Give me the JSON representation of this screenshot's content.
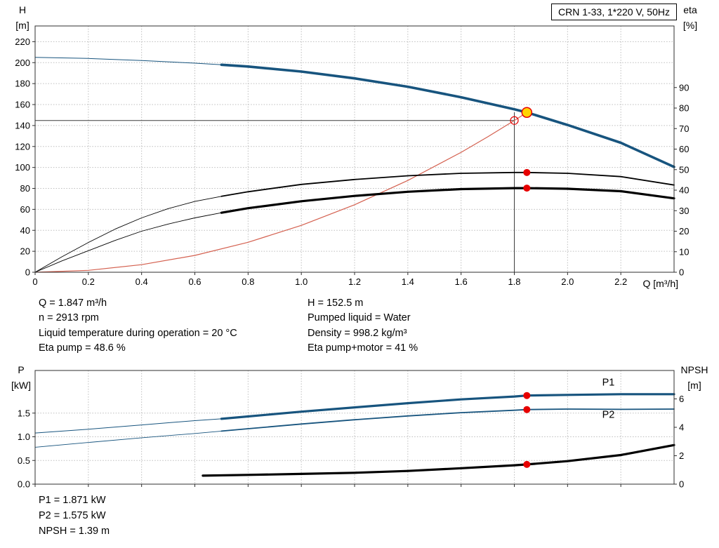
{
  "info_top": {
    "left": [
      "Q = 1.847 m³/h",
      "n = 2913 rpm",
      "Liquid temperature during operation = 20 °C",
      "Eta pump = 48.6 %"
    ],
    "right": [
      "H = 152.5 m",
      "Pumped liquid = Water",
      "Density = 998.2 kg/m³",
      "Eta pump+motor = 41 %"
    ]
  },
  "info_bottom": [
    "P1 = 1.871 kW",
    "P2 = 1.575 kW",
    "NPSH = 1.39 m"
  ],
  "colors": {
    "curve_blue": "#17547e",
    "curve_black": "#000000",
    "marker_red": "#e60000",
    "system_curve_red": "#d4604f",
    "duty_yellow": "#ffd400",
    "grid_gray": "#bdbdbd"
  },
  "chart_data": [
    {
      "name": "head-capacity-chart",
      "type": "line",
      "title": "CRN 1-33, 1*220 V, 50Hz",
      "grid": true,
      "legend_position": "none",
      "x_axis": {
        "name": "Q",
        "unit": "[m³/h]",
        "label": "Q [m³/h]",
        "min": 0,
        "max": 2.4,
        "ticks": [
          0,
          0.2,
          0.4,
          0.6,
          0.8,
          1.0,
          1.2,
          1.4,
          1.6,
          1.8,
          2.0,
          2.2
        ],
        "labels": [
          "0",
          "0.2",
          "0.4",
          "0.6",
          "0.8",
          "1.0",
          "1.2",
          "1.4",
          "1.6",
          "1.8",
          "2.0",
          "2.2"
        ]
      },
      "y_left": {
        "name": "H",
        "unit": "[m]",
        "min": 0,
        "max": 235,
        "ticks": [
          0,
          20,
          40,
          60,
          80,
          100,
          120,
          140,
          160,
          180,
          200,
          220
        ],
        "labels": [
          "0",
          "20",
          "40",
          "60",
          "80",
          "100",
          "120",
          "140",
          "160",
          "180",
          "200",
          "220"
        ]
      },
      "y_right": {
        "name": "eta",
        "unit": "[%]",
        "min": 0,
        "max": 120,
        "ticks": [
          0,
          10,
          20,
          30,
          40,
          50,
          60,
          70,
          80,
          90
        ],
        "labels": [
          "0",
          "10",
          "20",
          "30",
          "40",
          "50",
          "60",
          "70",
          "80",
          "90"
        ]
      },
      "crosshair": {
        "x": 1.8,
        "y": 144.8,
        "y_top": 152.5,
        "color": "#3c3c3c"
      },
      "series": [
        {
          "name": "system-curve",
          "axis": "left",
          "color": "#d4604f",
          "width": 1.2,
          "thin_width": 1.2,
          "thick_from": null,
          "points": [
            [
              0,
              0
            ],
            [
              0.2,
              1.8
            ],
            [
              0.4,
              7.2
            ],
            [
              0.6,
              16.1
            ],
            [
              0.8,
              28.6
            ],
            [
              1.0,
              44.7
            ],
            [
              1.2,
              64.4
            ],
            [
              1.4,
              87.6
            ],
            [
              1.6,
              114.4
            ],
            [
              1.7,
              129.2
            ],
            [
              1.8,
              144.8
            ],
            [
              1.847,
              152.5
            ]
          ]
        },
        {
          "name": "head-curve",
          "axis": "left",
          "color": "#17547e",
          "width": 3.6,
          "thin_width": 1,
          "thick_from": 0.7,
          "points": [
            [
              0,
              205
            ],
            [
              0.2,
              204
            ],
            [
              0.4,
              202
            ],
            [
              0.6,
              199.5
            ],
            [
              0.7,
              198
            ],
            [
              0.8,
              196.3
            ],
            [
              1.0,
              191.5
            ],
            [
              1.2,
              185
            ],
            [
              1.4,
              177
            ],
            [
              1.6,
              167
            ],
            [
              1.8,
              155.5
            ],
            [
              1.847,
              152.5
            ],
            [
              2.0,
              140.5
            ],
            [
              2.2,
              123.5
            ],
            [
              2.4,
              100.5
            ]
          ]
        },
        {
          "name": "eta-pump-curve",
          "axis": "right",
          "color": "#000000",
          "width": 1.8,
          "thin_width": 0.9,
          "thick_from": 0.7,
          "points": [
            [
              0,
              0
            ],
            [
              0.1,
              7.5
            ],
            [
              0.2,
              14.5
            ],
            [
              0.3,
              21
            ],
            [
              0.4,
              26.5
            ],
            [
              0.5,
              31
            ],
            [
              0.6,
              34.5
            ],
            [
              0.7,
              37
            ],
            [
              0.8,
              39.2
            ],
            [
              1.0,
              42.8
            ],
            [
              1.2,
              45.2
            ],
            [
              1.4,
              47
            ],
            [
              1.6,
              48.2
            ],
            [
              1.8,
              48.6
            ],
            [
              1.847,
              48.6
            ],
            [
              2.0,
              48.2
            ],
            [
              2.2,
              46.6
            ],
            [
              2.4,
              42.5
            ]
          ]
        },
        {
          "name": "eta-pump-motor-curve",
          "axis": "right",
          "color": "#000000",
          "width": 3.2,
          "thin_width": 0.9,
          "thick_from": 0.7,
          "points": [
            [
              0,
              0
            ],
            [
              0.1,
              5.5
            ],
            [
              0.2,
              10.5
            ],
            [
              0.3,
              15.5
            ],
            [
              0.4,
              20
            ],
            [
              0.5,
              23.5
            ],
            [
              0.6,
              26.5
            ],
            [
              0.7,
              29
            ],
            [
              0.8,
              31.2
            ],
            [
              1.0,
              34.6
            ],
            [
              1.2,
              37.2
            ],
            [
              1.4,
              39.2
            ],
            [
              1.6,
              40.5
            ],
            [
              1.8,
              41
            ],
            [
              1.847,
              41
            ],
            [
              2.0,
              40.7
            ],
            [
              2.2,
              39.5
            ],
            [
              2.4,
              36
            ]
          ]
        }
      ],
      "markers": [
        {
          "name": "requested-duty-point",
          "axis": "left",
          "x": 1.8,
          "y": 144.8,
          "r": 5.5,
          "fill": "none",
          "stroke": "#e60000",
          "sw": 1.2,
          "interactable": false
        },
        {
          "name": "duty-point",
          "axis": "left",
          "x": 1.847,
          "y": 152.5,
          "r": 7,
          "fill": "#ffd400",
          "stroke": "#e60000",
          "sw": 1.5,
          "interactable": true
        },
        {
          "name": "eta-pump-duty-dot",
          "axis": "right",
          "x": 1.847,
          "y": 48.6,
          "r": 5,
          "fill": "#e60000",
          "stroke": "none",
          "sw": 0,
          "interactable": false
        },
        {
          "name": "eta-pump-motor-duty-dot",
          "axis": "right",
          "x": 1.847,
          "y": 41,
          "r": 5,
          "fill": "#e60000",
          "stroke": "none",
          "sw": 0,
          "interactable": false
        }
      ]
    },
    {
      "name": "power-npsh-chart",
      "type": "line",
      "title": "",
      "grid": true,
      "legend_position": "inline-right",
      "x_axis": {
        "name": "Q",
        "unit": "[m³/h]",
        "label": "",
        "min": 0,
        "max": 2.4,
        "ticks": [
          0,
          0.2,
          0.4,
          0.6,
          0.8,
          1.0,
          1.2,
          1.4,
          1.6,
          1.8,
          2.0,
          2.2
        ],
        "labels": []
      },
      "y_left": {
        "name": "P",
        "unit": "[kW]",
        "min": 0,
        "max": 2.4,
        "ticks": [
          0,
          0.5,
          1.0,
          1.5
        ],
        "labels": [
          "0.0",
          "0.5",
          "1.0",
          "1.5"
        ]
      },
      "y_right": {
        "name": "NPSH",
        "unit": "[m]",
        "min": 0,
        "max": 8,
        "ticks": [
          0,
          2,
          4,
          6
        ],
        "labels": [
          "0",
          "2",
          "4",
          "6"
        ]
      },
      "crosshair": null,
      "series": [
        {
          "name": "p1-curve",
          "axis": "left",
          "color": "#17547e",
          "width": 3.2,
          "thin_width": 1,
          "thick_from": 0.7,
          "label": "P1",
          "label_at": [
            2.13,
            2.08
          ],
          "points": [
            [
              0,
              1.08
            ],
            [
              0.2,
              1.16
            ],
            [
              0.4,
              1.25
            ],
            [
              0.6,
              1.34
            ],
            [
              0.7,
              1.38
            ],
            [
              0.8,
              1.43
            ],
            [
              1.0,
              1.53
            ],
            [
              1.2,
              1.62
            ],
            [
              1.4,
              1.71
            ],
            [
              1.6,
              1.79
            ],
            [
              1.8,
              1.85
            ],
            [
              1.847,
              1.871
            ],
            [
              2.0,
              1.885
            ],
            [
              2.2,
              1.9
            ],
            [
              2.4,
              1.9
            ]
          ]
        },
        {
          "name": "p2-curve",
          "axis": "left",
          "color": "#17547e",
          "width": 1.8,
          "thin_width": 0.9,
          "thick_from": 0.7,
          "label": "P2",
          "label_at": [
            2.13,
            1.4
          ],
          "points": [
            [
              0,
              0.78
            ],
            [
              0.2,
              0.88
            ],
            [
              0.4,
              0.98
            ],
            [
              0.6,
              1.07
            ],
            [
              0.7,
              1.12
            ],
            [
              0.8,
              1.17
            ],
            [
              1.0,
              1.27
            ],
            [
              1.2,
              1.36
            ],
            [
              1.4,
              1.44
            ],
            [
              1.6,
              1.51
            ],
            [
              1.8,
              1.56
            ],
            [
              1.847,
              1.575
            ],
            [
              2.0,
              1.585
            ],
            [
              2.2,
              1.58
            ],
            [
              2.4,
              1.585
            ]
          ]
        },
        {
          "name": "npsh-curve",
          "axis": "right",
          "color": "#000000",
          "width": 3.2,
          "thin_width": 3.2,
          "thick_from": null,
          "points": [
            [
              0.63,
              0.6
            ],
            [
              0.8,
              0.65
            ],
            [
              1.0,
              0.72
            ],
            [
              1.2,
              0.8
            ],
            [
              1.4,
              0.93
            ],
            [
              1.6,
              1.12
            ],
            [
              1.8,
              1.33
            ],
            [
              1.847,
              1.39
            ],
            [
              2.0,
              1.62
            ],
            [
              2.2,
              2.05
            ],
            [
              2.4,
              2.75
            ]
          ]
        }
      ],
      "markers": [
        {
          "name": "p1-duty-dot",
          "axis": "left",
          "x": 1.847,
          "y": 1.871,
          "r": 5,
          "fill": "#e60000",
          "stroke": "none",
          "sw": 0,
          "interactable": false
        },
        {
          "name": "p2-duty-dot",
          "axis": "left",
          "x": 1.847,
          "y": 1.575,
          "r": 5,
          "fill": "#e60000",
          "stroke": "none",
          "sw": 0,
          "interactable": false
        },
        {
          "name": "npsh-duty-dot",
          "axis": "right",
          "x": 1.847,
          "y": 1.39,
          "r": 5,
          "fill": "#e60000",
          "stroke": "none",
          "sw": 0,
          "interactable": false
        }
      ]
    }
  ]
}
